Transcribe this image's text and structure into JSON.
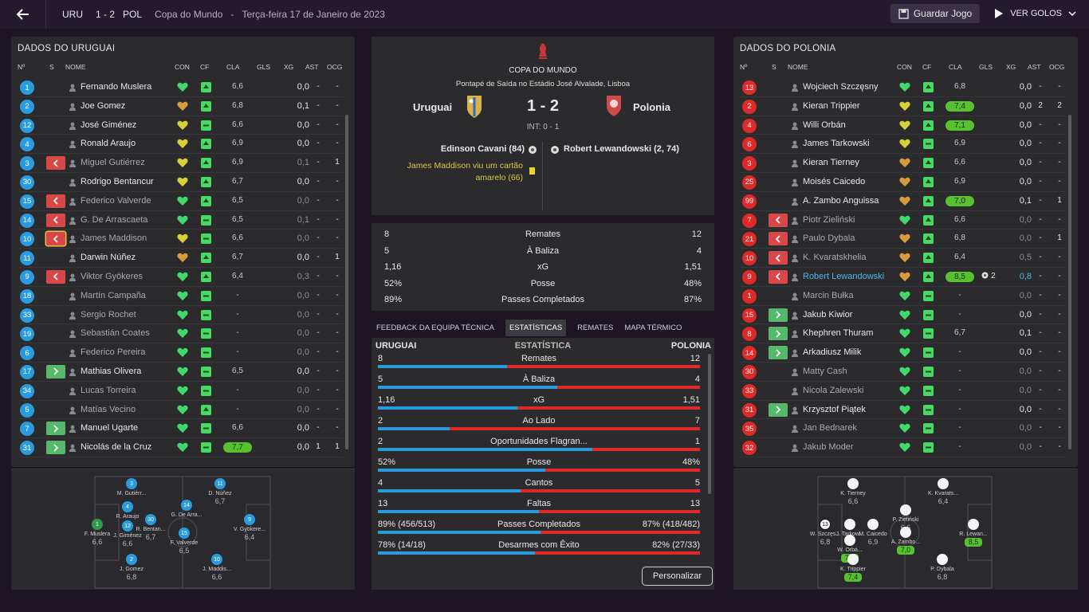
{
  "header": {
    "home_abbr": "URU",
    "score": "1 - 2",
    "away_abbr": "POL",
    "competition": "Copa do Mundo",
    "separator": "-",
    "date": "Terça-feira 17 de Janeiro de 2023",
    "save_label": "Guardar Jogo",
    "goals_label": "VER GOLOS"
  },
  "columns": {
    "no": "Nº",
    "s": "S",
    "name": "NOME",
    "con": "CON",
    "cf": "CF",
    "cla": "CLA",
    "gls": "GLS",
    "xg": "XG",
    "ast": "AST",
    "ocg": "OCG"
  },
  "uru_panel": {
    "title": "DADOS DO URUGUAI",
    "players": [
      {
        "no": "1",
        "sub": "",
        "name": "Fernando Muslera",
        "con": "green",
        "cf": "up",
        "cla": "6,6",
        "gls": "",
        "xg": "0,0",
        "ast": "-",
        "ocg": "-",
        "dim": false,
        "pill": false
      },
      {
        "no": "2",
        "sub": "",
        "name": "Joe Gomez",
        "con": "orange",
        "cf": "up",
        "cla": "6,8",
        "gls": "",
        "xg": "0,1",
        "ast": "-",
        "ocg": "-",
        "dim": false,
        "pill": false
      },
      {
        "no": "12",
        "sub": "",
        "name": "José Giménez",
        "con": "yellow",
        "cf": "flat",
        "cla": "6,6",
        "gls": "",
        "xg": "0,0",
        "ast": "-",
        "ocg": "-",
        "dim": false,
        "pill": false
      },
      {
        "no": "4",
        "sub": "",
        "name": "Ronald Araujo",
        "con": "yellow",
        "cf": "up",
        "cla": "6,9",
        "gls": "",
        "xg": "0,0",
        "ast": "-",
        "ocg": "-",
        "dim": false,
        "pill": false
      },
      {
        "no": "3",
        "sub": "out",
        "name": "Miguel Gutiérrez",
        "con": "yellow",
        "cf": "up",
        "cla": "6,9",
        "gls": "",
        "xg": "0,1",
        "ast": "-",
        "ocg": "1",
        "dim": true,
        "pill": false
      },
      {
        "no": "30",
        "sub": "",
        "name": "Rodrigo Bentancur",
        "con": "yellow",
        "cf": "up",
        "cla": "6,7",
        "gls": "",
        "xg": "0,0",
        "ast": "-",
        "ocg": "-",
        "dim": false,
        "pill": false
      },
      {
        "no": "15",
        "sub": "out",
        "name": "Federico Valverde",
        "con": "green",
        "cf": "up",
        "cla": "6,5",
        "gls": "",
        "xg": "0,0",
        "ast": "-",
        "ocg": "-",
        "dim": true,
        "pill": false
      },
      {
        "no": "14",
        "sub": "out",
        "name": "G. De Arrascaeta",
        "con": "green",
        "cf": "flat",
        "cla": "6,5",
        "gls": "",
        "xg": "0,1",
        "ast": "-",
        "ocg": "-",
        "dim": true,
        "pill": false
      },
      {
        "no": "10",
        "sub": "out-hl",
        "name": "James Maddison",
        "con": "yellow",
        "cf": "flat",
        "cla": "6,6",
        "gls": "",
        "xg": "0,0",
        "ast": "-",
        "ocg": "-",
        "dim": true,
        "pill": false
      },
      {
        "no": "11",
        "sub": "",
        "name": "Darwin Núñez",
        "con": "orange",
        "cf": "up",
        "cla": "6,7",
        "gls": "",
        "xg": "0,0",
        "ast": "-",
        "ocg": "1",
        "dim": false,
        "pill": false
      },
      {
        "no": "9",
        "sub": "out",
        "name": "Viktor Gyökeres",
        "con": "green",
        "cf": "up",
        "cla": "6,4",
        "gls": "",
        "xg": "0,3",
        "ast": "-",
        "ocg": "-",
        "dim": true,
        "pill": false
      },
      {
        "no": "18",
        "sub": "",
        "name": "Martín Campaña",
        "con": "green",
        "cf": "flat",
        "cla": "-",
        "gls": "",
        "xg": "0,0",
        "ast": "-",
        "ocg": "-",
        "dim": true,
        "pill": false
      },
      {
        "no": "33",
        "sub": "",
        "name": "Sergio Rochet",
        "con": "green",
        "cf": "flat",
        "cla": "-",
        "gls": "",
        "xg": "0,0",
        "ast": "-",
        "ocg": "-",
        "dim": true,
        "pill": false
      },
      {
        "no": "19",
        "sub": "",
        "name": "Sebastián Coates",
        "con": "green",
        "cf": "flat",
        "cla": "-",
        "gls": "",
        "xg": "0,0",
        "ast": "-",
        "ocg": "-",
        "dim": true,
        "pill": false
      },
      {
        "no": "6",
        "sub": "",
        "name": "Federico Pereira",
        "con": "green",
        "cf": "flat",
        "cla": "-",
        "gls": "",
        "xg": "0,0",
        "ast": "-",
        "ocg": "-",
        "dim": true,
        "pill": false
      },
      {
        "no": "17",
        "sub": "in",
        "name": "Mathias Olivera",
        "con": "green",
        "cf": "flat",
        "cla": "6,5",
        "gls": "",
        "xg": "0,0",
        "ast": "-",
        "ocg": "-",
        "dim": false,
        "pill": false
      },
      {
        "no": "34",
        "sub": "",
        "name": "Lucas Torreira",
        "con": "green",
        "cf": "flat",
        "cla": "-",
        "gls": "",
        "xg": "0,0",
        "ast": "-",
        "ocg": "-",
        "dim": true,
        "pill": false
      },
      {
        "no": "5",
        "sub": "",
        "name": "Matías Vecino",
        "con": "green",
        "cf": "up",
        "cla": "-",
        "gls": "",
        "xg": "0,0",
        "ast": "-",
        "ocg": "-",
        "dim": true,
        "pill": false
      },
      {
        "no": "7",
        "sub": "in",
        "name": "Manuel Ugarte",
        "con": "green",
        "cf": "flat",
        "cla": "6,6",
        "gls": "",
        "xg": "0,0",
        "ast": "-",
        "ocg": "-",
        "dim": false,
        "pill": false
      },
      {
        "no": "31",
        "sub": "in",
        "name": "Nicolás de la Cruz",
        "con": "green",
        "cf": "flat",
        "cla": "7,7",
        "gls": "",
        "xg": "0,0",
        "ast": "1",
        "ocg": "1",
        "dim": false,
        "pill": true
      }
    ]
  },
  "pol_panel": {
    "title": "DADOS DO POLONIA",
    "players": [
      {
        "no": "13",
        "sub": "",
        "name": "Wojciech Szczęsny",
        "con": "green",
        "cf": "up",
        "cla": "6,8",
        "gls": "",
        "xg": "0,0",
        "ast": "-",
        "ocg": "-",
        "dim": false,
        "pill": false
      },
      {
        "no": "2",
        "sub": "",
        "name": "Kieran Trippier",
        "con": "yellow",
        "cf": "up",
        "cla": "7,4",
        "gls": "",
        "xg": "0,0",
        "ast": "2",
        "ocg": "2",
        "dim": false,
        "pill": true
      },
      {
        "no": "4",
        "sub": "",
        "name": "Willi Orbán",
        "con": "yellow",
        "cf": "up",
        "cla": "7,1",
        "gls": "",
        "xg": "0,0",
        "ast": "-",
        "ocg": "-",
        "dim": false,
        "pill": true
      },
      {
        "no": "6",
        "sub": "",
        "name": "James Tarkowski",
        "con": "yellow",
        "cf": "flat",
        "cla": "6,9",
        "gls": "",
        "xg": "0,0",
        "ast": "-",
        "ocg": "-",
        "dim": false,
        "pill": false
      },
      {
        "no": "3",
        "sub": "",
        "name": "Kieran Tierney",
        "con": "orange",
        "cf": "up",
        "cla": "6,6",
        "gls": "",
        "xg": "0,0",
        "ast": "-",
        "ocg": "-",
        "dim": false,
        "pill": false
      },
      {
        "no": "25",
        "sub": "",
        "name": "Moisés Caicedo",
        "con": "orange",
        "cf": "up",
        "cla": "6,9",
        "gls": "",
        "xg": "0,0",
        "ast": "-",
        "ocg": "-",
        "dim": false,
        "pill": false
      },
      {
        "no": "99",
        "sub": "",
        "name": "A. Zambo Anguissa",
        "con": "orange",
        "cf": "up",
        "cla": "7,0",
        "gls": "",
        "xg": "0,1",
        "ast": "-",
        "ocg": "1",
        "dim": false,
        "pill": true
      },
      {
        "no": "7",
        "sub": "out",
        "name": "Piotr Zieliński",
        "con": "green",
        "cf": "up",
        "cla": "6,6",
        "gls": "",
        "xg": "0,0",
        "ast": "-",
        "ocg": "-",
        "dim": true,
        "pill": false
      },
      {
        "no": "21",
        "sub": "out",
        "name": "Paulo Dybala",
        "con": "orange",
        "cf": "up",
        "cla": "6,8",
        "gls": "",
        "xg": "0,0",
        "ast": "-",
        "ocg": "1",
        "dim": true,
        "pill": false
      },
      {
        "no": "10",
        "sub": "out",
        "name": "K. Kvaratskhelia",
        "con": "orange",
        "cf": "up",
        "cla": "6,4",
        "gls": "",
        "xg": "0,5",
        "ast": "-",
        "ocg": "-",
        "dim": true,
        "pill": false
      },
      {
        "no": "9",
        "sub": "out",
        "name": "Robert Lewandowski",
        "con": "orange",
        "cf": "up",
        "cla": "8,5",
        "gls": "2",
        "xg": "0,8",
        "ast": "-",
        "ocg": "-",
        "dim": false,
        "pill": true,
        "link": true
      },
      {
        "no": "1",
        "sub": "",
        "name": "Marcin Bułka",
        "con": "green",
        "cf": "flat",
        "cla": "-",
        "gls": "",
        "xg": "0,0",
        "ast": "-",
        "ocg": "-",
        "dim": true,
        "pill": false
      },
      {
        "no": "15",
        "sub": "in",
        "name": "Jakub Kiwior",
        "con": "green",
        "cf": "flat",
        "cla": "-",
        "gls": "",
        "xg": "0,0",
        "ast": "-",
        "ocg": "-",
        "dim": false,
        "pill": false
      },
      {
        "no": "8",
        "sub": "in",
        "name": "Khephren Thuram",
        "con": "green",
        "cf": "flat",
        "cla": "6,7",
        "gls": "",
        "xg": "0,1",
        "ast": "-",
        "ocg": "-",
        "dim": false,
        "pill": false
      },
      {
        "no": "14",
        "sub": "in",
        "name": "Arkadiusz Milik",
        "con": "green",
        "cf": "flat",
        "cla": "-",
        "gls": "",
        "xg": "0,0",
        "ast": "-",
        "ocg": "-",
        "dim": false,
        "pill": false
      },
      {
        "no": "30",
        "sub": "",
        "name": "Matty Cash",
        "con": "green",
        "cf": "flat",
        "cla": "-",
        "gls": "",
        "xg": "0,0",
        "ast": "-",
        "ocg": "-",
        "dim": true,
        "pill": false
      },
      {
        "no": "33",
        "sub": "",
        "name": "Nicola Zalewski",
        "con": "green",
        "cf": "flat",
        "cla": "-",
        "gls": "",
        "xg": "0,0",
        "ast": "-",
        "ocg": "-",
        "dim": true,
        "pill": false
      },
      {
        "no": "31",
        "sub": "in",
        "name": "Krzysztof Piątek",
        "con": "green",
        "cf": "flat",
        "cla": "-",
        "gls": "",
        "xg": "0,0",
        "ast": "-",
        "ocg": "-",
        "dim": false,
        "pill": false
      },
      {
        "no": "35",
        "sub": "",
        "name": "Jan Bednarek",
        "con": "green",
        "cf": "flat",
        "cla": "-",
        "gls": "",
        "xg": "0,0",
        "ast": "-",
        "ocg": "-",
        "dim": true,
        "pill": false
      },
      {
        "no": "32",
        "sub": "",
        "name": "Jakub Moder",
        "con": "green",
        "cf": "flat",
        "cla": "-",
        "gls": "",
        "xg": "0,0",
        "ast": "-",
        "ocg": "-",
        "dim": true,
        "pill": false
      }
    ]
  },
  "match": {
    "competition": "COPA DO MUNDO",
    "venue": "Pontapé de Saída no Estádio José Alvalade, Lisboa",
    "home": "Uruguai",
    "away": "Polonia",
    "score": "1 - 2",
    "ht": "INT: 0 - 1",
    "home_event_goal": "Edinson Cavani (84)",
    "home_event_card": "James Maddison viu um cartão amarelo (66)",
    "away_event_goal": "Robert Lewandowski (2, 74)"
  },
  "summary_stats": [
    {
      "home": "8",
      "label": "Remates",
      "away": "12"
    },
    {
      "home": "5",
      "label": "À Baliza",
      "away": "4"
    },
    {
      "home": "1,16",
      "label": "xG",
      "away": "1,51"
    },
    {
      "home": "52%",
      "label": "Posse",
      "away": "48%"
    },
    {
      "home": "89%",
      "label": "Passes Completados",
      "away": "87%"
    }
  ],
  "tabs": [
    "FEEDBACK DA EQUIPA TÉCNICA",
    "ESTATÍSTICAS",
    "REMATES",
    "MAPA TÉRMICO"
  ],
  "bar_stats": {
    "home": "URUGUAI",
    "title": "ESTATÍSTICA",
    "away": "POLONIA",
    "rows": [
      {
        "home": "8",
        "label": "Remates",
        "away": "12",
        "share": 0.4
      },
      {
        "home": "5",
        "label": "À Baliza",
        "away": "4",
        "share": 0.556
      },
      {
        "home": "1,16",
        "label": "xG",
        "away": "1,51",
        "share": 0.434
      },
      {
        "home": "2",
        "label": "Ao Lado",
        "away": "7",
        "share": 0.222
      },
      {
        "home": "2",
        "label": "Oportunidades Flagran...",
        "away": "1",
        "share": 0.667
      },
      {
        "home": "52%",
        "label": "Posse",
        "away": "48%",
        "share": 0.52
      },
      {
        "home": "4",
        "label": "Cantos",
        "away": "5",
        "share": 0.444
      },
      {
        "home": "13",
        "label": "Faltas",
        "away": "13",
        "share": 0.5
      },
      {
        "home": "89% (456/513)",
        "label": "Passes Completados",
        "away": "87% (418/482)",
        "share": 0.506
      },
      {
        "home": "78% (14/18)",
        "label": "Desarmes com Êxito",
        "away": "82% (27/33)",
        "share": 0.487
      }
    ]
  },
  "customize_label": "Personalizar",
  "uru_pitch": [
    {
      "no": "1",
      "name": "F. Muslera",
      "rating": "6,6",
      "gk": true
    },
    {
      "no": "3",
      "name": "M. Gutiérr...",
      "rating": "",
      "gk": false
    },
    {
      "no": "4",
      "name": "R. Araujo",
      "rating": "",
      "gk": false
    },
    {
      "no": "12",
      "name": "J. Giménez",
      "rating": "6,6",
      "gk": false
    },
    {
      "no": "2",
      "name": "J. Gomez",
      "rating": "6,8",
      "gk": false
    },
    {
      "no": "30",
      "name": "R. Bentan...",
      "rating": "6,7",
      "gk": false
    },
    {
      "no": "15",
      "name": "F. Valverde",
      "rating": "6,5",
      "gk": false
    },
    {
      "no": "14",
      "name": "G. De Arra...",
      "rating": "",
      "gk": false
    },
    {
      "no": "11",
      "name": "D. Núñez",
      "rating": "6,7",
      "gk": false
    },
    {
      "no": "10",
      "name": "J. Maddis...",
      "rating": "6,6",
      "gk": false
    },
    {
      "no": "9",
      "name": "V. Gyökere...",
      "rating": "6,4",
      "gk": false
    }
  ],
  "pol_pitch": [
    {
      "no": "13",
      "name": "W. Szczęs...",
      "rating": "6,8",
      "pill": false
    },
    {
      "no": "",
      "name": "K. Tierney",
      "rating": "6,6",
      "pill": false
    },
    {
      "no": "",
      "name": "J. Tarkow...",
      "rating": "6,9",
      "pill": false
    },
    {
      "no": "",
      "name": "W. Orbá...",
      "rating": "7,1",
      "pill": true
    },
    {
      "no": "",
      "name": "K. Trippier",
      "rating": "7,4",
      "pill": true
    },
    {
      "no": "",
      "name": "M. Caicedo",
      "rating": "6,9",
      "pill": false
    },
    {
      "no": "",
      "name": "P. Zieliński",
      "rating": "6,6",
      "pill": false
    },
    {
      "no": "",
      "name": "A. Zambo...",
      "rating": "7,0",
      "pill": true
    },
    {
      "no": "",
      "name": "P. Dybala",
      "rating": "6,8",
      "pill": false
    },
    {
      "no": "",
      "name": "K. Kvarats...",
      "rating": "6,4",
      "pill": false
    },
    {
      "no": "",
      "name": "R. Lewan...",
      "rating": "8,5",
      "pill": true
    }
  ],
  "colors": {
    "home": "#2b9be0",
    "away": "#e02a2a",
    "con_green": "#41d86b",
    "con_yellow": "#d9cf36",
    "con_orange": "#d99a3e",
    "rating_pill": "#58c12f"
  }
}
